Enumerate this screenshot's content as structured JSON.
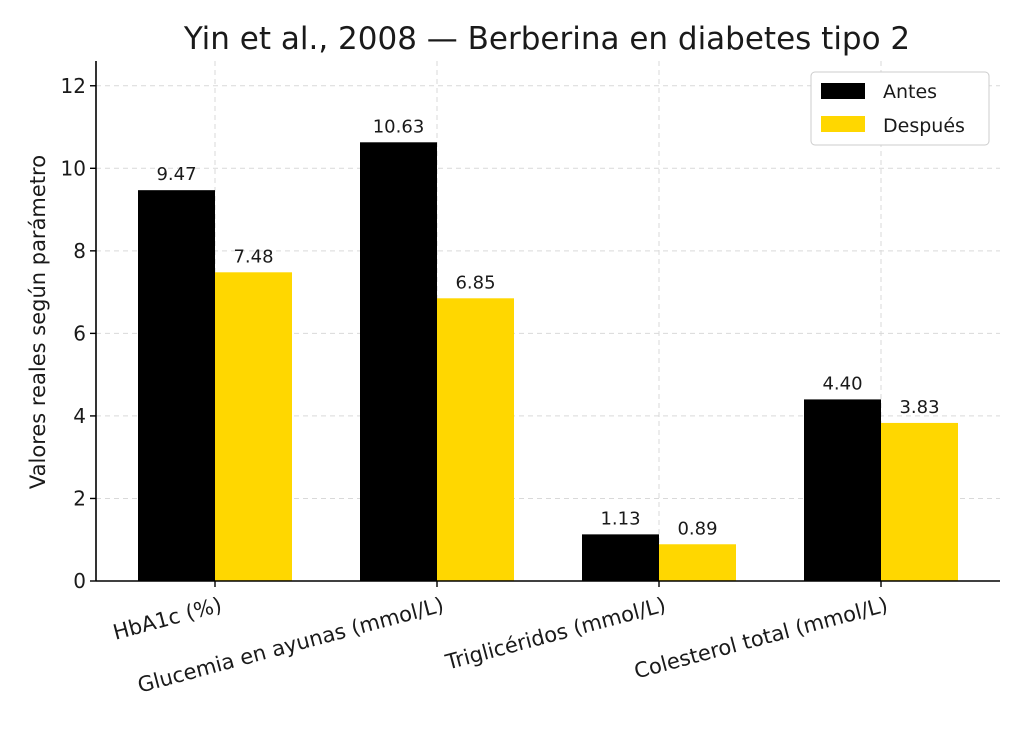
{
  "chart_data": {
    "type": "bar",
    "title": "Yin et al., 2008 — Berberina en diabetes tipo 2",
    "xlabel": "",
    "ylabel": "Valores reales según parámetro",
    "categories": [
      "HbA1c (%)",
      "Glucemia en ayunas (mmol/L)",
      "Triglicéridos (mmol/L)",
      "Colesterol total (mmol/L)"
    ],
    "series": [
      {
        "name": "Antes",
        "color": "#000000",
        "values": [
          9.47,
          10.63,
          1.13,
          4.4
        ],
        "labels": [
          "9.47",
          "10.63",
          "1.13",
          "4.40"
        ]
      },
      {
        "name": "Después",
        "color": "#FFD700",
        "values": [
          7.48,
          6.85,
          0.89,
          3.83
        ],
        "labels": [
          "7.48",
          "6.85",
          "0.89",
          "3.83"
        ]
      }
    ],
    "ylim": [
      0,
      12.6
    ],
    "yticks": [
      0,
      2,
      4,
      6,
      8,
      10,
      12
    ],
    "grid": true,
    "legend_position": "top-right"
  }
}
